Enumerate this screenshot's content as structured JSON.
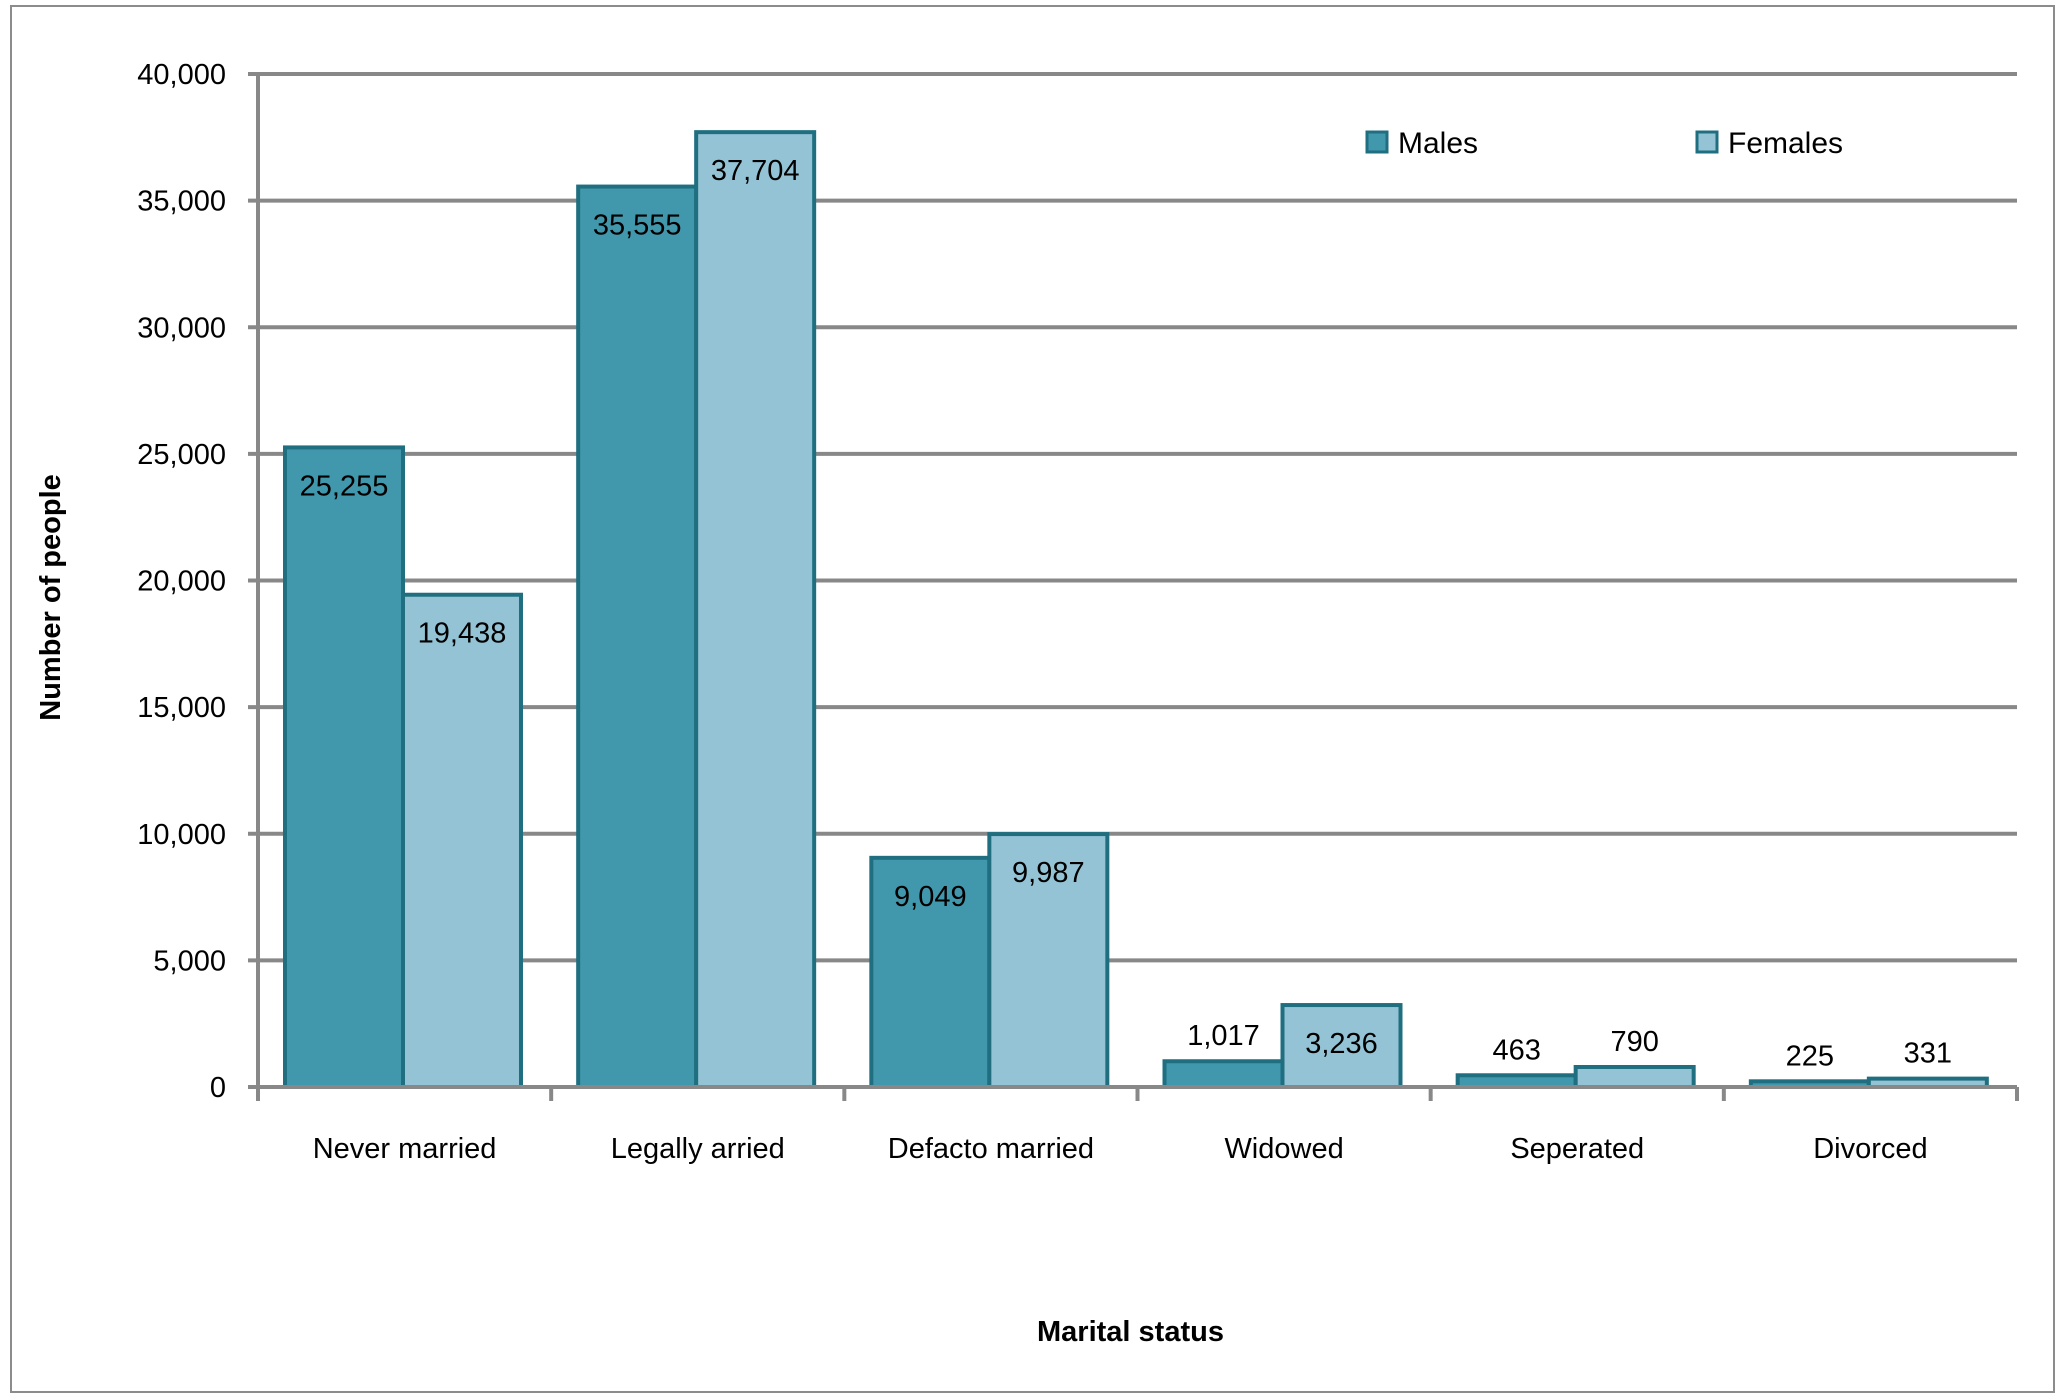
{
  "chart_data": {
    "type": "bar",
    "title": "",
    "xlabel": "Marital status",
    "ylabel": "Number of people",
    "ylim": [
      0,
      40000
    ],
    "yticks": [
      0,
      5000,
      10000,
      15000,
      20000,
      25000,
      30000,
      35000,
      40000
    ],
    "ytick_labels": [
      "0",
      "5,000",
      "10,000",
      "15,000",
      "20,000",
      "25,000",
      "30,000",
      "35,000",
      "40,000"
    ],
    "categories": [
      "Never married",
      "Legally arried",
      "Defacto married",
      "Widowed",
      "Seperated",
      "Divorced"
    ],
    "series": [
      {
        "name": "Males",
        "color": "#4197ac",
        "edge_color": "#1f6f80",
        "values": [
          25255,
          35555,
          9049,
          1017,
          463,
          225
        ],
        "labels": [
          "25,255",
          "35,555",
          "9,049",
          "1,017",
          "463",
          "225"
        ]
      },
      {
        "name": "Females",
        "color": "#93c3d4",
        "edge_color": "#1f6f80",
        "values": [
          19438,
          37704,
          9987,
          3236,
          790,
          331
        ],
        "labels": [
          "19,438",
          "37,704",
          "9,987",
          "3,236",
          "790",
          "331"
        ]
      }
    ],
    "grid": true,
    "legend_position": "top-right"
  }
}
